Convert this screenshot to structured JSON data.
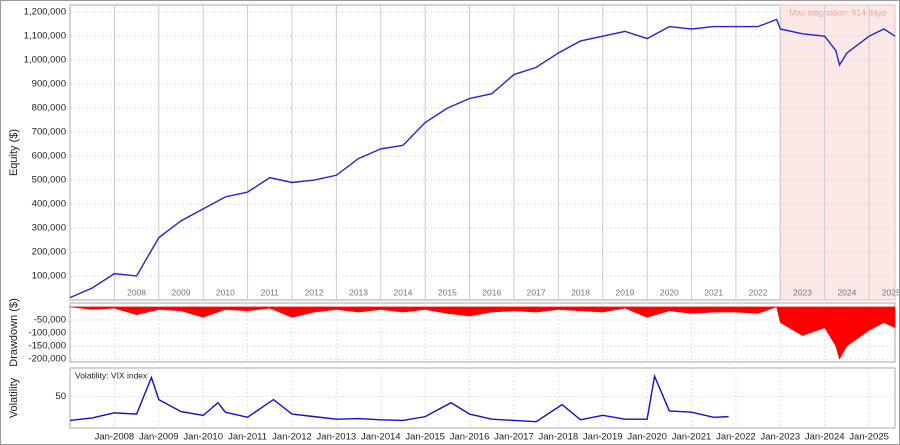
{
  "chart_data": [
    {
      "type": "line",
      "y_label": "Equity ($)",
      "color": "#2424d8",
      "x": [
        "2007-01",
        "2007-07",
        "2008-01",
        "2008-07",
        "2009-01",
        "2009-07",
        "2010-01",
        "2010-07",
        "2011-01",
        "2011-07",
        "2012-01",
        "2012-07",
        "2013-01",
        "2013-07",
        "2014-01",
        "2014-07",
        "2015-01",
        "2015-07",
        "2016-01",
        "2016-07",
        "2017-01",
        "2017-07",
        "2018-01",
        "2018-07",
        "2019-01",
        "2019-07",
        "2020-01",
        "2020-07",
        "2021-01",
        "2021-07",
        "2022-01",
        "2022-07",
        "2022-12",
        "2023-01",
        "2023-07",
        "2024-01",
        "2024-04",
        "2024-05",
        "2024-07",
        "2025-01",
        "2025-05",
        "2025-08"
      ],
      "values": [
        10000,
        50000,
        110000,
        100000,
        260000,
        330000,
        380000,
        430000,
        450000,
        510000,
        490000,
        500000,
        520000,
        590000,
        630000,
        645000,
        740000,
        800000,
        840000,
        860000,
        940000,
        970000,
        1030000,
        1080000,
        1100000,
        1120000,
        1090000,
        1140000,
        1130000,
        1140000,
        1140000,
        1140000,
        1170000,
        1130000,
        1110000,
        1100000,
        1040000,
        980000,
        1030000,
        1100000,
        1130000,
        1100000
      ],
      "xlim": [
        "2007-01",
        "2025-08"
      ],
      "ylim": [
        0,
        1230000
      ],
      "yticks": [
        {
          "value": 100000,
          "label": "100,000"
        },
        {
          "value": 200000,
          "label": "200,000"
        },
        {
          "value": 300000,
          "label": "300,000"
        },
        {
          "value": 400000,
          "label": "400,000"
        },
        {
          "value": 500000,
          "label": "500,000"
        },
        {
          "value": 600000,
          "label": "600,000"
        },
        {
          "value": 700000,
          "label": "700,000"
        },
        {
          "value": 800000,
          "label": "800,000"
        },
        {
          "value": 900000,
          "label": "900,000"
        },
        {
          "value": 1000000,
          "label": "1,000,000"
        },
        {
          "value": 1100000,
          "label": "1,100,000"
        },
        {
          "value": 1200000,
          "label": "1,200,000"
        }
      ],
      "year_labels": [
        "2008",
        "2009",
        "2010",
        "2011",
        "2012",
        "2013",
        "2014",
        "2015",
        "2016",
        "2017",
        "2018",
        "2019",
        "2020",
        "2021",
        "2022",
        "2023",
        "2024",
        "2025"
      ],
      "shade": {
        "from": "2023-01",
        "to": "2025-08",
        "label": "Max stagnation: 914 days",
        "color": "#fde8e8"
      },
      "grid": true
    },
    {
      "type": "area",
      "y_label": "Drawdown ($)",
      "color": "#ff0000",
      "x": [
        "2007-01",
        "2007-07",
        "2008-01",
        "2008-07",
        "2009-01",
        "2009-07",
        "2010-01",
        "2010-07",
        "2011-01",
        "2011-07",
        "2012-01",
        "2012-07",
        "2013-01",
        "2013-07",
        "2014-01",
        "2014-07",
        "2015-01",
        "2015-07",
        "2016-01",
        "2016-07",
        "2017-01",
        "2017-07",
        "2018-01",
        "2018-07",
        "2019-01",
        "2019-07",
        "2020-01",
        "2020-07",
        "2021-01",
        "2021-07",
        "2022-01",
        "2022-07",
        "2022-12",
        "2023-01",
        "2023-07",
        "2024-01",
        "2024-04",
        "2024-05",
        "2024-07",
        "2025-01",
        "2025-05",
        "2025-08"
      ],
      "values": [
        0,
        -10000,
        -5000,
        -30000,
        -10000,
        -15000,
        -40000,
        -10000,
        -15000,
        -5000,
        -40000,
        -20000,
        -10000,
        -20000,
        -10000,
        -20000,
        -10000,
        -25000,
        -35000,
        -20000,
        -15000,
        -20000,
        -10000,
        -15000,
        -20000,
        -5000,
        -40000,
        -15000,
        -25000,
        -20000,
        -20000,
        -25000,
        0,
        -60000,
        -110000,
        -80000,
        -150000,
        -200000,
        -150000,
        -90000,
        -60000,
        -80000
      ],
      "xlim": [
        "2007-01",
        "2025-08"
      ],
      "ylim": [
        -211000,
        15000
      ],
      "yticks": [
        {
          "value": -50000,
          "label": "-50,000"
        },
        {
          "value": -100000,
          "label": "-100,000"
        },
        {
          "value": -150000,
          "label": "-150,000"
        },
        {
          "value": -200000,
          "label": "-200,000"
        }
      ],
      "grid": true
    },
    {
      "type": "line",
      "y_label": "Volatility",
      "legend": "Volatility: VIX index",
      "color": "#1010d0",
      "x": [
        "2007-01",
        "2007-07",
        "2008-01",
        "2008-07",
        "2008-11",
        "2009-01",
        "2009-07",
        "2010-01",
        "2010-05",
        "2010-07",
        "2011-01",
        "2011-08",
        "2012-01",
        "2012-07",
        "2013-01",
        "2013-07",
        "2014-01",
        "2014-07",
        "2015-01",
        "2015-08",
        "2016-01",
        "2016-07",
        "2017-01",
        "2017-07",
        "2018-02",
        "2018-07",
        "2019-01",
        "2019-07",
        "2020-01",
        "2020-03",
        "2020-07",
        "2021-01",
        "2021-07",
        "2021-11"
      ],
      "values": [
        12,
        16,
        24,
        22,
        80,
        45,
        26,
        20,
        40,
        25,
        17,
        45,
        22,
        18,
        14,
        15,
        13,
        12,
        18,
        40,
        22,
        14,
        12,
        10,
        37,
        13,
        20,
        14,
        14,
        82,
        27,
        25,
        17,
        18
      ],
      "xlim": [
        "2007-01",
        "2025-08"
      ],
      "ylim": [
        0,
        95
      ],
      "yticks": [
        50
      ],
      "xticks": [
        {
          "value": "2008-01",
          "label": "Jan-2008"
        },
        {
          "value": "2009-01",
          "label": "Jan-2009"
        },
        {
          "value": "2010-01",
          "label": "Jan-2010"
        },
        {
          "value": "2011-01",
          "label": "Jan-2011"
        },
        {
          "value": "2012-01",
          "label": "Jan-2012"
        },
        {
          "value": "2013-01",
          "label": "Jan-2013"
        },
        {
          "value": "2014-01",
          "label": "Jan-2014"
        },
        {
          "value": "2015-01",
          "label": "Jan-2015"
        },
        {
          "value": "2016-01",
          "label": "Jan-2016"
        },
        {
          "value": "2017-01",
          "label": "Jan-2017"
        },
        {
          "value": "2018-01",
          "label": "Jan-2018"
        },
        {
          "value": "2019-01",
          "label": "Jan-2019"
        },
        {
          "value": "2020-01",
          "label": "Jan-2020"
        },
        {
          "value": "2021-01",
          "label": "Jan-2021"
        },
        {
          "value": "2022-01",
          "label": "Jan-2022"
        },
        {
          "value": "2023-01",
          "label": "Jan-2023"
        },
        {
          "value": "2024-01",
          "label": "Jan-2024"
        },
        {
          "value": "2025-01",
          "label": "Jan-2025"
        }
      ],
      "grid": true
    }
  ]
}
